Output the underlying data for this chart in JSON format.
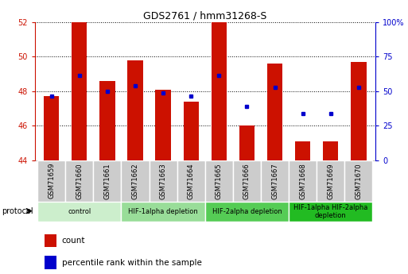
{
  "title": "GDS2761 / hmm31268-S",
  "samples": [
    "GSM71659",
    "GSM71660",
    "GSM71661",
    "GSM71662",
    "GSM71663",
    "GSM71664",
    "GSM71665",
    "GSM71666",
    "GSM71667",
    "GSM71668",
    "GSM71669",
    "GSM71670"
  ],
  "counts": [
    47.7,
    52.0,
    48.6,
    49.8,
    48.1,
    47.4,
    52.0,
    46.0,
    49.6,
    45.1,
    45.1,
    49.7
  ],
  "percentile_ranks": [
    47.7,
    48.9,
    48.0,
    48.3,
    47.9,
    47.7,
    48.9,
    47.1,
    48.2,
    46.7,
    46.7,
    48.2
  ],
  "bar_bottom": 44.0,
  "left_ylim": [
    44,
    52
  ],
  "left_yticks": [
    44,
    46,
    48,
    50,
    52
  ],
  "right_yticks_pct": [
    0,
    25,
    50,
    75,
    100
  ],
  "bar_color": "#cc1100",
  "dot_color": "#0000cc",
  "bg_color": "#ffffff",
  "protocol_groups": [
    {
      "label": "control",
      "start": 0,
      "end": 2,
      "color": "#cceecc"
    },
    {
      "label": "HIF-1alpha depletion",
      "start": 3,
      "end": 5,
      "color": "#99dd99"
    },
    {
      "label": "HIF-2alpha depletion",
      "start": 6,
      "end": 8,
      "color": "#55cc55"
    },
    {
      "label": "HIF-1alpha HIF-2alpha\ndepletion",
      "start": 9,
      "end": 11,
      "color": "#22bb22"
    }
  ],
  "left_tick_color": "#cc1100",
  "right_tick_color": "#0000cc",
  "protocol_label": "protocol",
  "legend_count_label": "count",
  "legend_pct_label": "percentile rank within the sample",
  "sample_box_color": "#cccccc"
}
